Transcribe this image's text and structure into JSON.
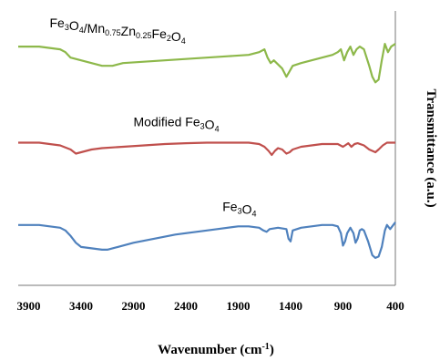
{
  "chart_data": {
    "type": "line",
    "xlabel": "Wavenumber (cm",
    "xlabel_sup": "-1",
    "xlabel_end": ")",
    "ylabel": "Transmittance (a.u.)",
    "xlim": [
      4000,
      400
    ],
    "x_reversed": true,
    "ylim": [
      0,
      100
    ],
    "ticks": [
      "3900",
      "3400",
      "2900",
      "2400",
      "1900",
      "1400",
      "900",
      "400"
    ],
    "tick_values": [
      3900,
      3400,
      2900,
      2400,
      1900,
      1400,
      900,
      400
    ],
    "grid": false,
    "series": [
      {
        "name": "Fe3O4/Mn0.75Zn0.25Fe2O4",
        "label_parts": [
          {
            "t": "Fe"
          },
          {
            "t": "3",
            "sub": true
          },
          {
            "t": "O"
          },
          {
            "t": "4",
            "sub": true
          },
          {
            "t": "/Mn"
          },
          {
            "t": "0.75",
            "sub": true
          },
          {
            "t": "Zn"
          },
          {
            "t": "0.25",
            "sub": true
          },
          {
            "t": "Fe"
          },
          {
            "t": "2",
            "sub": true
          },
          {
            "t": "O"
          },
          {
            "t": "4",
            "sub": true
          }
        ],
        "label_at": [
          3700,
          94
        ],
        "color": "#8db84a",
        "points": [
          [
            4000,
            87
          ],
          [
            3800,
            87
          ],
          [
            3700,
            86.5
          ],
          [
            3600,
            86
          ],
          [
            3550,
            85
          ],
          [
            3500,
            83
          ],
          [
            3400,
            82
          ],
          [
            3300,
            81
          ],
          [
            3200,
            80
          ],
          [
            3100,
            80
          ],
          [
            3000,
            81
          ],
          [
            2800,
            81.5
          ],
          [
            2600,
            82
          ],
          [
            2400,
            82.5
          ],
          [
            2200,
            83
          ],
          [
            2000,
            83.5
          ],
          [
            1800,
            84
          ],
          [
            1700,
            85
          ],
          [
            1650,
            86
          ],
          [
            1620,
            83
          ],
          [
            1590,
            81
          ],
          [
            1560,
            82
          ],
          [
            1520,
            80.5
          ],
          [
            1480,
            79
          ],
          [
            1440,
            76
          ],
          [
            1410,
            78
          ],
          [
            1380,
            80
          ],
          [
            1300,
            81
          ],
          [
            1200,
            82
          ],
          [
            1100,
            83
          ],
          [
            1000,
            84
          ],
          [
            950,
            85
          ],
          [
            920,
            86
          ],
          [
            890,
            82
          ],
          [
            860,
            85
          ],
          [
            830,
            87
          ],
          [
            800,
            84
          ],
          [
            770,
            86
          ],
          [
            740,
            87
          ],
          [
            700,
            86
          ],
          [
            650,
            80
          ],
          [
            620,
            76
          ],
          [
            590,
            74
          ],
          [
            560,
            75
          ],
          [
            530,
            82
          ],
          [
            500,
            88
          ],
          [
            470,
            85
          ],
          [
            440,
            87
          ],
          [
            400,
            88
          ]
        ]
      },
      {
        "name": "Modified Fe3O4",
        "label_parts": [
          {
            "t": "Modified Fe"
          },
          {
            "t": "3",
            "sub": true
          },
          {
            "t": "O"
          },
          {
            "t": "4",
            "sub": true
          }
        ],
        "label_at": [
          2900,
          58
        ],
        "color": "#c0504d",
        "points": [
          [
            4000,
            52
          ],
          [
            3800,
            52
          ],
          [
            3700,
            51.5
          ],
          [
            3600,
            51
          ],
          [
            3500,
            49.5
          ],
          [
            3450,
            48
          ],
          [
            3400,
            48.5
          ],
          [
            3300,
            49.5
          ],
          [
            3200,
            50
          ],
          [
            3000,
            50.5
          ],
          [
            2800,
            51
          ],
          [
            2600,
            51.5
          ],
          [
            2400,
            51.8
          ],
          [
            2200,
            52
          ],
          [
            2000,
            52
          ],
          [
            1800,
            52
          ],
          [
            1700,
            51.5
          ],
          [
            1650,
            50.5
          ],
          [
            1610,
            49
          ],
          [
            1580,
            47.5
          ],
          [
            1550,
            49
          ],
          [
            1520,
            50
          ],
          [
            1480,
            49.5
          ],
          [
            1440,
            48
          ],
          [
            1410,
            48.5
          ],
          [
            1380,
            49.5
          ],
          [
            1300,
            50.5
          ],
          [
            1200,
            51
          ],
          [
            1100,
            51.5
          ],
          [
            1000,
            51.5
          ],
          [
            950,
            51.5
          ],
          [
            900,
            50.5
          ],
          [
            880,
            51
          ],
          [
            850,
            51.8
          ],
          [
            820,
            50.5
          ],
          [
            790,
            51.5
          ],
          [
            760,
            51.8
          ],
          [
            700,
            51
          ],
          [
            650,
            49.5
          ],
          [
            620,
            49
          ],
          [
            590,
            48.5
          ],
          [
            560,
            49.5
          ],
          [
            520,
            51
          ],
          [
            480,
            52
          ],
          [
            440,
            52
          ],
          [
            400,
            52
          ]
        ]
      },
      {
        "name": "Fe3O4",
        "label_parts": [
          {
            "t": "Fe"
          },
          {
            "t": "3",
            "sub": true
          },
          {
            "t": "O"
          },
          {
            "t": "4",
            "sub": true
          }
        ],
        "label_at": [
          2050,
          27
        ],
        "color": "#4f81bd",
        "points": [
          [
            4000,
            22
          ],
          [
            3800,
            22
          ],
          [
            3700,
            21.5
          ],
          [
            3600,
            21
          ],
          [
            3550,
            20
          ],
          [
            3500,
            18
          ],
          [
            3450,
            15.5
          ],
          [
            3400,
            14
          ],
          [
            3300,
            13.5
          ],
          [
            3200,
            13
          ],
          [
            3150,
            13
          ],
          [
            3050,
            14
          ],
          [
            2900,
            15.5
          ],
          [
            2700,
            17
          ],
          [
            2500,
            18.5
          ],
          [
            2300,
            19.5
          ],
          [
            2100,
            20.5
          ],
          [
            1900,
            21.5
          ],
          [
            1800,
            21.5
          ],
          [
            1700,
            21
          ],
          [
            1660,
            20
          ],
          [
            1630,
            19.5
          ],
          [
            1600,
            20.5
          ],
          [
            1520,
            21
          ],
          [
            1440,
            20.5
          ],
          [
            1420,
            17
          ],
          [
            1400,
            16
          ],
          [
            1380,
            20
          ],
          [
            1300,
            21
          ],
          [
            1200,
            21.5
          ],
          [
            1100,
            22
          ],
          [
            1000,
            22
          ],
          [
            950,
            21.5
          ],
          [
            920,
            19
          ],
          [
            900,
            14.5
          ],
          [
            880,
            16
          ],
          [
            860,
            19
          ],
          [
            830,
            21
          ],
          [
            800,
            19
          ],
          [
            780,
            15.5
          ],
          [
            760,
            17
          ],
          [
            740,
            20
          ],
          [
            720,
            20.5
          ],
          [
            700,
            20
          ],
          [
            660,
            16
          ],
          [
            620,
            11
          ],
          [
            590,
            10
          ],
          [
            560,
            10.5
          ],
          [
            530,
            14
          ],
          [
            500,
            20
          ],
          [
            480,
            22
          ],
          [
            450,
            20.5
          ],
          [
            420,
            22
          ],
          [
            400,
            23
          ]
        ]
      }
    ]
  }
}
